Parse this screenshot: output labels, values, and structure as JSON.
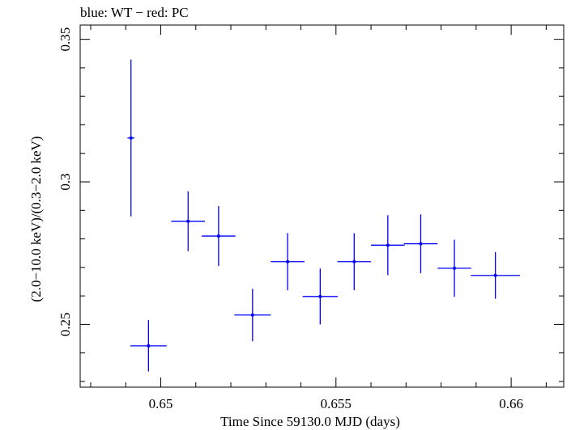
{
  "chart_data": {
    "type": "scatter",
    "title": "blue: WT − red: PC",
    "xlabel": "Time Since 59130.0 MJD (days)",
    "ylabel": "(2.0−10.0 keV)/(0.3−2.0 keV)",
    "xlim": [
      0.6477,
      0.6615
    ],
    "ylim": [
      0.228,
      0.355
    ],
    "x_ticks": [
      0.65,
      0.655,
      0.66
    ],
    "x_tick_labels": [
      "0.65",
      "0.655",
      "0.66"
    ],
    "y_ticks": [
      0.25,
      0.3
    ],
    "y_tick_labels": [
      "0.25",
      "0.3"
    ],
    "grid": false,
    "series": [
      {
        "color": "#0000ff",
        "points": [
          {
            "x": 0.64915,
            "xerr": 0.0001,
            "y": 0.3154,
            "yerr": 0.0275
          },
          {
            "x": 0.64965,
            "xerr": 0.00052,
            "y": 0.2425,
            "yerr": 0.009
          },
          {
            "x": 0.65078,
            "xerr": 0.00048,
            "y": 0.2862,
            "yerr": 0.0105
          },
          {
            "x": 0.65165,
            "xerr": 0.00048,
            "y": 0.281,
            "yerr": 0.0105
          },
          {
            "x": 0.65262,
            "xerr": 0.00052,
            "y": 0.2533,
            "yerr": 0.0092
          },
          {
            "x": 0.65362,
            "xerr": 0.00048,
            "y": 0.272,
            "yerr": 0.01
          },
          {
            "x": 0.65455,
            "xerr": 0.0005,
            "y": 0.2598,
            "yerr": 0.0098
          },
          {
            "x": 0.65552,
            "xerr": 0.00048,
            "y": 0.272,
            "yerr": 0.01
          },
          {
            "x": 0.65648,
            "xerr": 0.00048,
            "y": 0.2778,
            "yerr": 0.0105
          },
          {
            "x": 0.65742,
            "xerr": 0.00048,
            "y": 0.2783,
            "yerr": 0.0103
          },
          {
            "x": 0.65838,
            "xerr": 0.00048,
            "y": 0.2697,
            "yerr": 0.01
          },
          {
            "x": 0.65955,
            "xerr": 0.0007,
            "y": 0.2672,
            "yerr": 0.0082
          }
        ]
      }
    ]
  }
}
